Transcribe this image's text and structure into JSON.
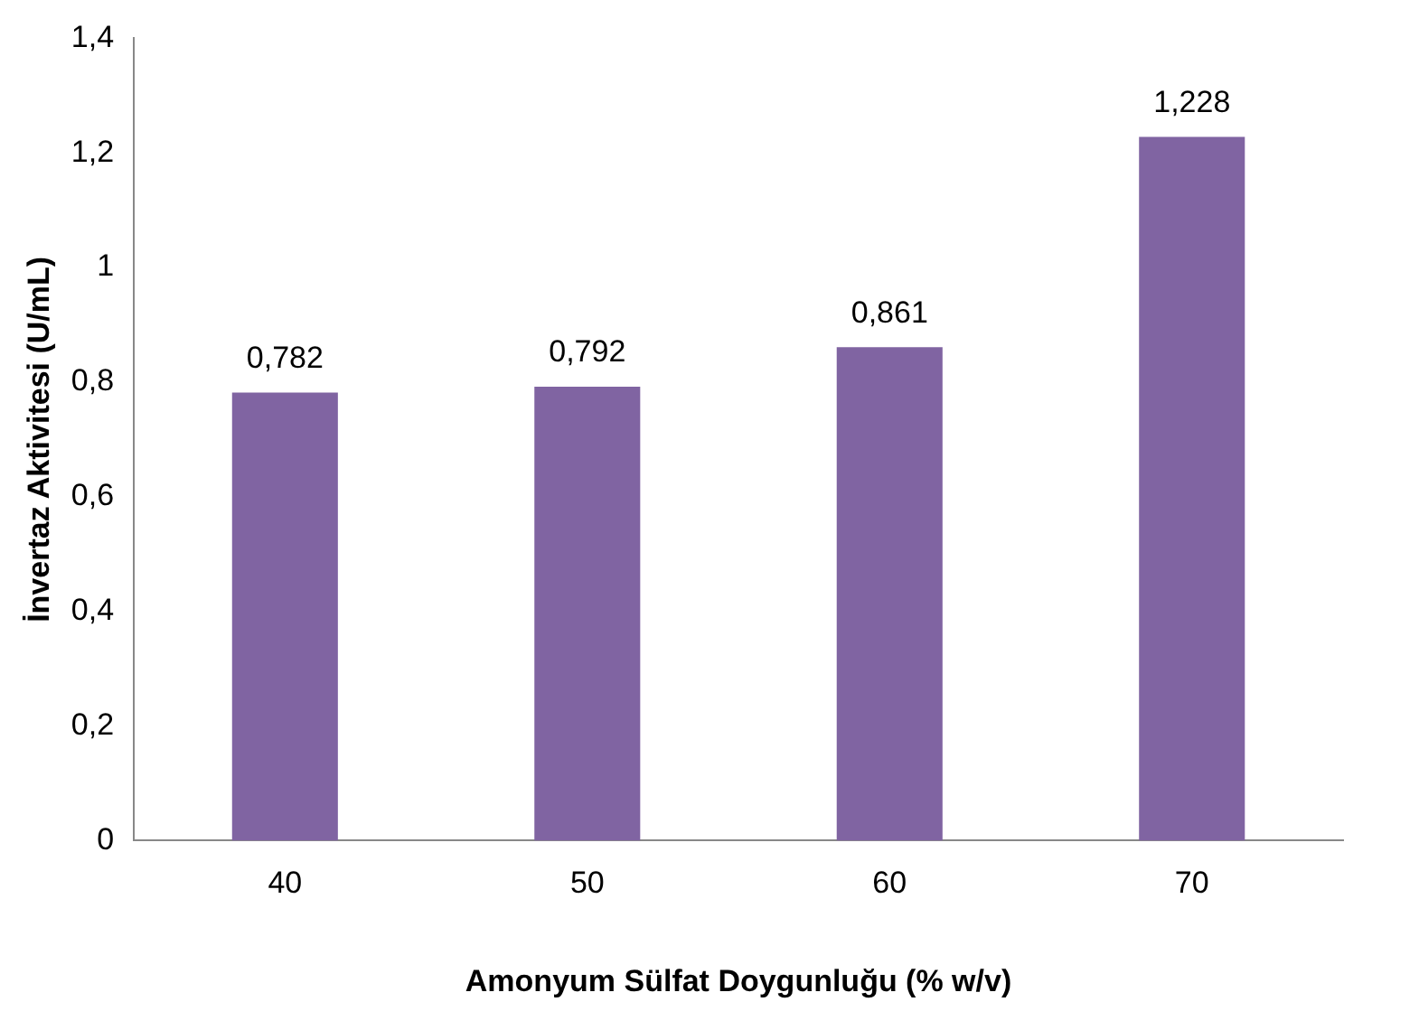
{
  "chart_data": {
    "type": "bar",
    "xlabel": "Amonyum Sülfat Doygunluğu (% w/v)",
    "ylabel": "İnvertaz Aktivitesi (U/mL)",
    "categories": [
      "40",
      "50",
      "60",
      "70"
    ],
    "values": [
      0.782,
      0.792,
      0.861,
      1.228
    ],
    "value_labels": [
      "0,782",
      "0,792",
      "0,861",
      "1,228"
    ],
    "color": "#8064a2",
    "ylim": [
      0,
      1.4
    ],
    "yticks": [
      {
        "value": 0,
        "label": "0"
      },
      {
        "value": 0.2,
        "label": "0,2"
      },
      {
        "value": 0.4,
        "label": "0,4"
      },
      {
        "value": 0.6,
        "label": "0,6"
      },
      {
        "value": 0.8,
        "label": "0,8"
      },
      {
        "value": 1,
        "label": "1"
      },
      {
        "value": 1.2,
        "label": "1,2"
      },
      {
        "value": 1.4,
        "label": "1,4"
      }
    ],
    "grid": false,
    "legend": false
  }
}
